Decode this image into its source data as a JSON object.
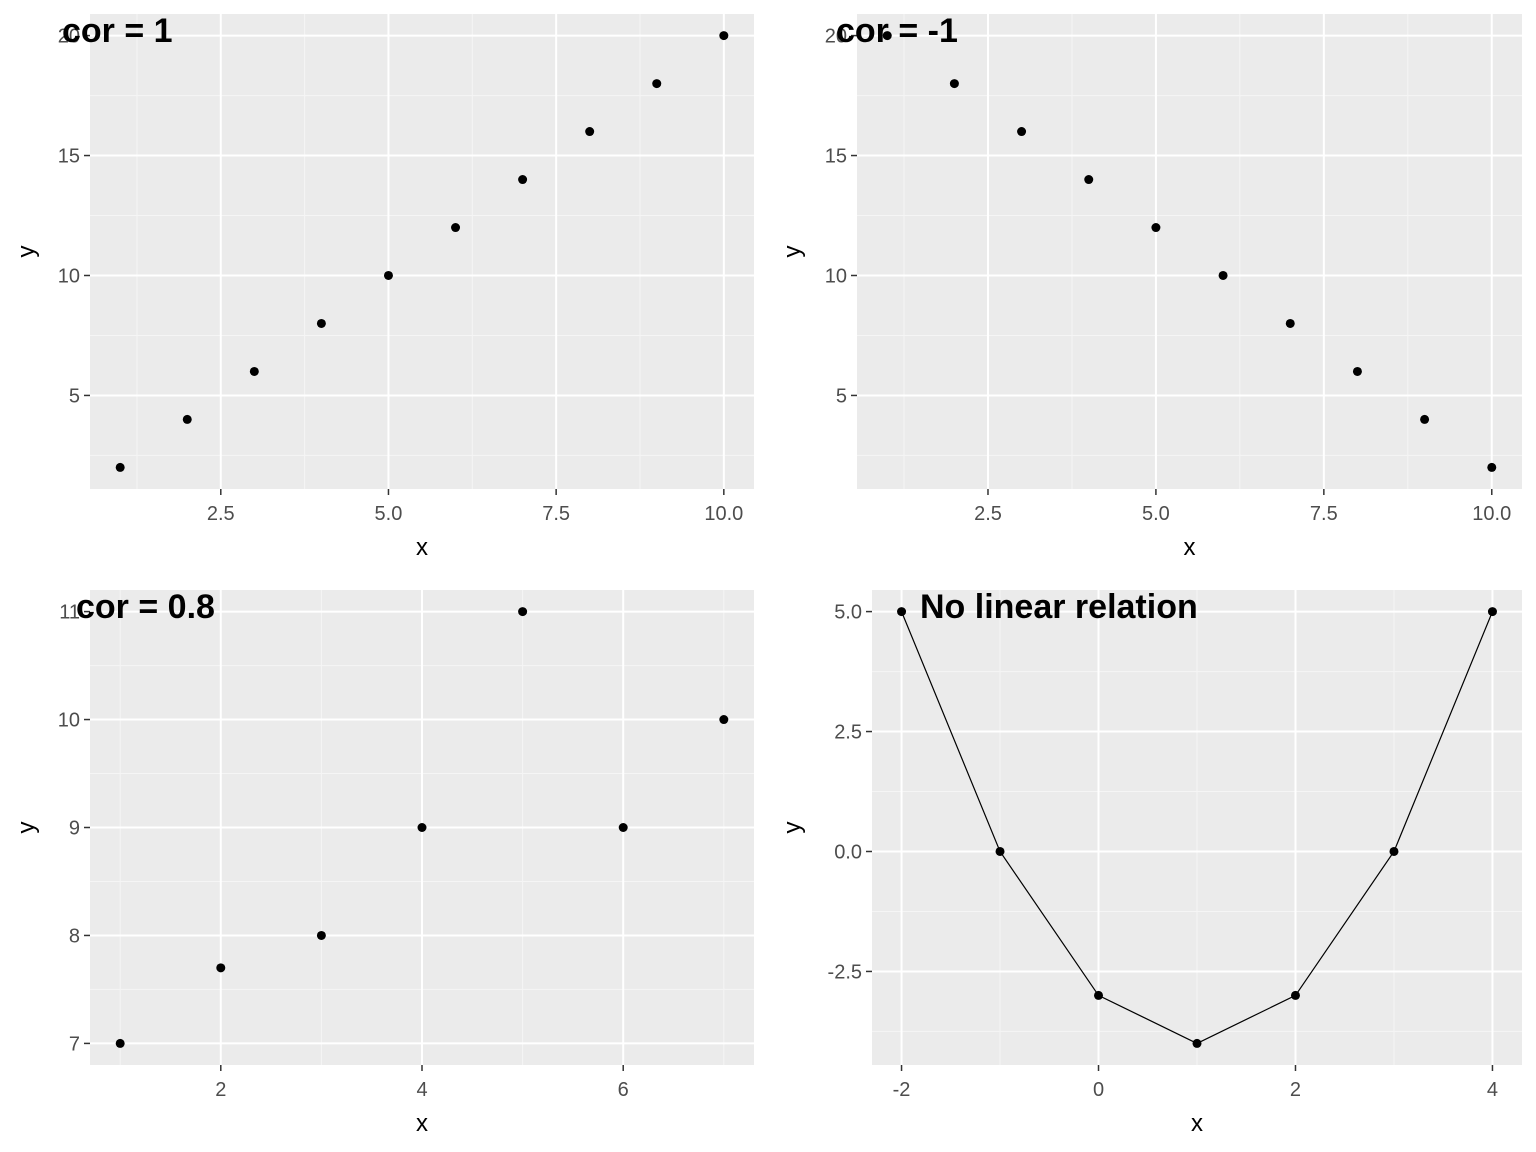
{
  "colors": {
    "panel_background": "#ebebeb",
    "grid_major": "#ffffff",
    "grid_minor": "#f5f5f5",
    "points": "#000000",
    "tick_text": "#4d4d4d",
    "ticks": "#333333"
  },
  "chart_data": [
    {
      "type": "scatter",
      "title": "cor = 1",
      "xlabel": "x",
      "ylabel": "y",
      "xlim": [
        0.55,
        10.45
      ],
      "ylim": [
        1.1,
        20.9
      ],
      "x_ticks": [
        2.5,
        5.0,
        7.5,
        10.0
      ],
      "x_tick_labels": [
        "2.5",
        "5.0",
        "7.5",
        "10.0"
      ],
      "y_ticks": [
        5,
        10,
        15,
        20
      ],
      "y_tick_labels": [
        "5",
        "10",
        "15",
        "20"
      ],
      "grid": true,
      "series": [
        {
          "connect": false,
          "x": [
            1,
            2,
            3,
            4,
            5,
            6,
            7,
            8,
            9,
            10
          ],
          "y": [
            2,
            4,
            6,
            8,
            10,
            12,
            14,
            16,
            18,
            20
          ]
        }
      ]
    },
    {
      "type": "scatter",
      "title": "cor = -1",
      "xlabel": "x",
      "ylabel": "y",
      "xlim": [
        0.55,
        10.45
      ],
      "ylim": [
        1.1,
        20.9
      ],
      "x_ticks": [
        2.5,
        5.0,
        7.5,
        10.0
      ],
      "x_tick_labels": [
        "2.5",
        "5.0",
        "7.5",
        "10.0"
      ],
      "y_ticks": [
        5,
        10,
        15,
        20
      ],
      "y_tick_labels": [
        "5",
        "10",
        "15",
        "20"
      ],
      "grid": true,
      "series": [
        {
          "connect": false,
          "x": [
            1,
            2,
            3,
            4,
            5,
            6,
            7,
            8,
            9,
            10
          ],
          "y": [
            20,
            18,
            16,
            14,
            12,
            10,
            8,
            6,
            4,
            2
          ]
        }
      ]
    },
    {
      "type": "scatter",
      "title": "cor = 0.8",
      "xlabel": "x",
      "ylabel": "y",
      "xlim": [
        0.7,
        7.3
      ],
      "ylim": [
        6.8,
        11.2
      ],
      "x_ticks": [
        2,
        4,
        6
      ],
      "x_tick_labels": [
        "2",
        "4",
        "6"
      ],
      "y_ticks": [
        7,
        8,
        9,
        10,
        11
      ],
      "y_tick_labels": [
        "7",
        "8",
        "9",
        "10",
        "11"
      ],
      "grid": true,
      "series": [
        {
          "connect": false,
          "x": [
            1,
            2,
            3,
            4,
            5,
            6,
            7
          ],
          "y": [
            7,
            7.7,
            8,
            9,
            11,
            9,
            10
          ]
        }
      ]
    },
    {
      "type": "line",
      "title": "No linear relation",
      "xlabel": "x",
      "ylabel": "y",
      "xlim": [
        -2.3,
        4.3
      ],
      "ylim": [
        -4.45,
        5.45
      ],
      "x_ticks": [
        -2,
        0,
        2,
        4
      ],
      "x_tick_labels": [
        "-2",
        "0",
        "2",
        "4"
      ],
      "y_ticks": [
        -2.5,
        0.0,
        2.5,
        5.0
      ],
      "y_tick_labels": [
        "-2.5",
        "0.0",
        "2.5",
        "5.0"
      ],
      "grid": true,
      "series": [
        {
          "connect": true,
          "x": [
            -2,
            -1,
            0,
            1,
            2,
            3,
            4
          ],
          "y": [
            5,
            0,
            -3,
            -4,
            -3,
            0,
            5
          ]
        }
      ]
    }
  ]
}
